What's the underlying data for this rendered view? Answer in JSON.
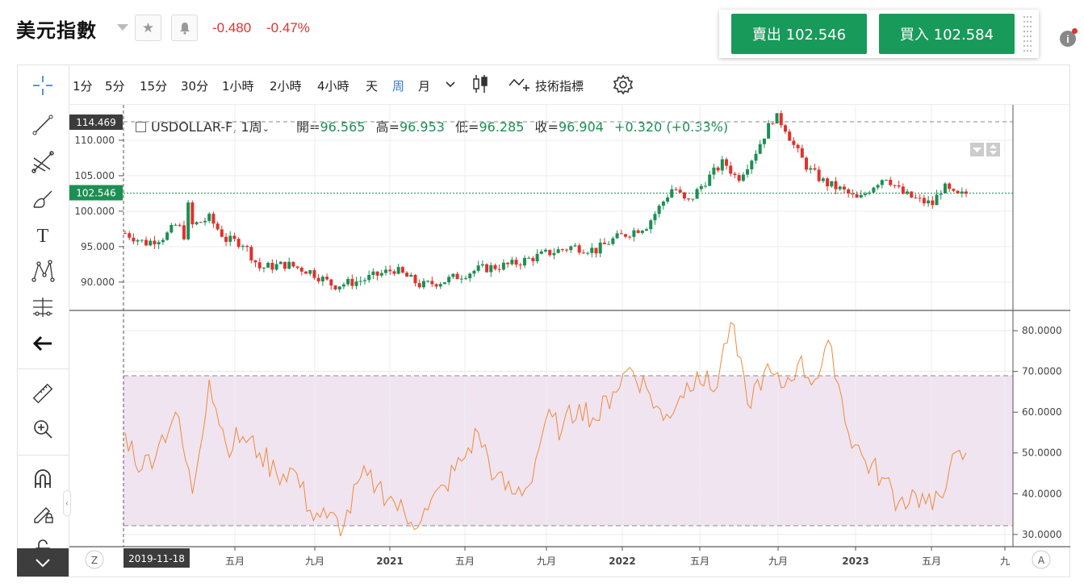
{
  "header": {
    "title": "美元指數",
    "change": "-0.480",
    "change_pct": "-0.47%",
    "sell_label": "賣出 102.546",
    "buy_label": "買入 102.584",
    "info_icon": "i"
  },
  "toolbar": {
    "timeframes": [
      "1分",
      "5分",
      "15分",
      "30分",
      "1小時",
      "2小時",
      "4小時",
      "天",
      "周",
      "月"
    ],
    "active_timeframe": "周",
    "indicators_label": "技術指標"
  },
  "legend": {
    "symbol": "USDOLLAR-F, 1周",
    "open_label": "開=",
    "open": "96.565",
    "high_label": "高=",
    "high": "96.953",
    "low_label": "低=",
    "low": "96.285",
    "close_label": "收=",
    "close": "96.904",
    "change": "+0.320 (+0.33%)"
  },
  "badges": {
    "crosshair_price": "114.469",
    "last_price": "102.546",
    "crosshair_date": "2019-11-18"
  },
  "bottom": {
    "left_button": "Z",
    "right_button": "A"
  },
  "chart_data": [
    {
      "type": "candlestick",
      "symbol": "USDOLLAR-F",
      "interval": "1周",
      "y_ticks": [
        "110.000",
        "105.000",
        "100.000",
        "95.000",
        "90.000"
      ],
      "ylim": [
        86,
        115
      ],
      "x_ticks": [
        "五月",
        "九月",
        "2021",
        "五月",
        "九月",
        "2022",
        "五月",
        "九月",
        "2023",
        "五月",
        "九"
      ],
      "close_path": [
        {
          "t": 0,
          "v": 96.9
        },
        {
          "t": 6,
          "v": 95.5
        },
        {
          "t": 12,
          "v": 96.5
        },
        {
          "t": 16,
          "v": 98.5
        },
        {
          "t": 17,
          "v": 95.0
        },
        {
          "t": 19,
          "v": 101.5
        },
        {
          "t": 20,
          "v": 98.0
        },
        {
          "t": 25,
          "v": 99.0
        },
        {
          "t": 30,
          "v": 96.0
        },
        {
          "t": 35,
          "v": 95.5
        },
        {
          "t": 40,
          "v": 92.0
        },
        {
          "t": 48,
          "v": 92.5
        },
        {
          "t": 55,
          "v": 91.5
        },
        {
          "t": 62,
          "v": 89.5
        },
        {
          "t": 70,
          "v": 90.2
        },
        {
          "t": 80,
          "v": 91.8
        },
        {
          "t": 88,
          "v": 89.5
        },
        {
          "t": 95,
          "v": 90.2
        },
        {
          "t": 105,
          "v": 91.8
        },
        {
          "t": 115,
          "v": 92.5
        },
        {
          "t": 125,
          "v": 94.0
        },
        {
          "t": 133,
          "v": 95.0
        },
        {
          "t": 140,
          "v": 94.5
        },
        {
          "t": 145,
          "v": 96.0
        },
        {
          "t": 150,
          "v": 97.0
        },
        {
          "t": 155,
          "v": 98.0
        },
        {
          "t": 158,
          "v": 100.0
        },
        {
          "t": 163,
          "v": 103.5
        },
        {
          "t": 167,
          "v": 101.0
        },
        {
          "t": 172,
          "v": 104.0
        },
        {
          "t": 178,
          "v": 107.0
        },
        {
          "t": 182,
          "v": 104.5
        },
        {
          "t": 187,
          "v": 108.0
        },
        {
          "t": 193,
          "v": 113.5
        },
        {
          "t": 196,
          "v": 112.0
        },
        {
          "t": 199,
          "v": 109.0
        },
        {
          "t": 203,
          "v": 106.0
        },
        {
          "t": 208,
          "v": 104.0
        },
        {
          "t": 213,
          "v": 103.0
        },
        {
          "t": 218,
          "v": 101.5
        },
        {
          "t": 222,
          "v": 103.5
        },
        {
          "t": 226,
          "v": 105.0
        },
        {
          "t": 231,
          "v": 102.5
        },
        {
          "t": 236,
          "v": 101.5
        },
        {
          "t": 240,
          "v": 101.0
        },
        {
          "t": 243,
          "v": 103.5
        },
        {
          "t": 247,
          "v": 102.0
        },
        {
          "t": 250,
          "v": 102.5
        }
      ],
      "last_price": 102.546
    },
    {
      "type": "line",
      "y_ticks": [
        "80.0000",
        "70.0000",
        "60.0000",
        "50.0000",
        "40.0000",
        "30.0000"
      ],
      "ylim": [
        27,
        82
      ],
      "band": [
        30,
        70
      ],
      "x": [
        0,
        5,
        10,
        15,
        20,
        25,
        30,
        35,
        40,
        45,
        50,
        55,
        60,
        65,
        70,
        75,
        80,
        85,
        90,
        95,
        100,
        105,
        110,
        115,
        120,
        125,
        130,
        135,
        140,
        145,
        150,
        155,
        160,
        165,
        170,
        175,
        180,
        185,
        190,
        195,
        200,
        205,
        210,
        215,
        220,
        225,
        230,
        235,
        240,
        245,
        250
      ],
      "values": [
        55,
        46,
        52,
        60,
        40,
        68,
        52,
        54,
        50,
        45,
        46,
        36,
        34,
        32,
        44,
        42,
        38,
        33,
        36,
        42,
        48,
        55,
        44,
        40,
        42,
        58,
        56,
        62,
        58,
        65,
        71,
        66,
        58,
        64,
        70,
        65,
        82,
        62,
        70,
        66,
        72,
        68,
        76,
        55,
        48,
        44,
        38,
        40,
        36,
        46,
        50
      ]
    }
  ]
}
